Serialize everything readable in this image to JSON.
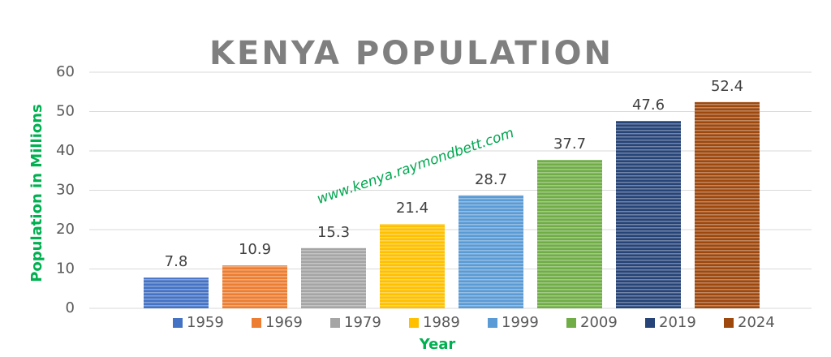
{
  "chart_data": {
    "type": "bar",
    "title": "KENYA POPULATION",
    "x_label": "Year",
    "y_label": "Population in Millions",
    "annotation": "www.kenya.raymondbett.com",
    "categories": [
      null
    ],
    "series": [
      {
        "name": "1959",
        "color": "#4472c4",
        "values": [
          7.8
        ]
      },
      {
        "name": "1969",
        "color": "#ed7d31",
        "values": [
          10.9
        ]
      },
      {
        "name": "1979",
        "color": "#a5a5a5",
        "values": [
          15.3
        ]
      },
      {
        "name": "1989",
        "color": "#ffc000",
        "values": [
          21.4
        ]
      },
      {
        "name": "1999",
        "color": "#5b9bd5",
        "values": [
          28.7
        ]
      },
      {
        "name": "2009",
        "color": "#70ad47",
        "values": [
          37.7
        ]
      },
      {
        "name": "2019",
        "color": "#264478",
        "values": [
          47.6
        ]
      },
      {
        "name": "2024",
        "color": "#9e480e",
        "values": [
          52.4
        ]
      }
    ],
    "ylim": [
      0,
      60
    ],
    "yticks": [
      0,
      10,
      20,
      30,
      40,
      50,
      60
    ],
    "grid": true,
    "legend": "bottom"
  }
}
